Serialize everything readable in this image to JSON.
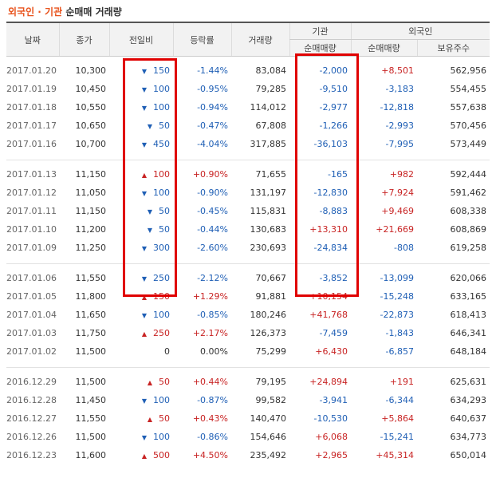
{
  "title": {
    "part1": "외국인 · 기관",
    "part2": "순매매 거래량"
  },
  "headers": {
    "date": "날짜",
    "close": "종가",
    "change": "전일비",
    "rate": "등락률",
    "volume": "거래량",
    "institution": "기관",
    "institution_net": "순매매량",
    "foreign": "외국인",
    "foreign_net": "순매매량",
    "foreign_hold": "보유주수"
  },
  "colors": {
    "title_accent": "#e8541e",
    "down": "#1f5fb5",
    "up": "#c82323",
    "highlight": "#e00000"
  },
  "groups": [
    {
      "rows": [
        {
          "date": "2017.01.20",
          "close": "10,300",
          "dir": "down",
          "change": "150",
          "rate": "-1.44%",
          "volume": "83,084",
          "inst": "-2,000",
          "frgn": "+8,501",
          "hold": "562,956"
        },
        {
          "date": "2017.01.19",
          "close": "10,450",
          "dir": "down",
          "change": "100",
          "rate": "-0.95%",
          "volume": "79,285",
          "inst": "-9,510",
          "frgn": "-3,183",
          "hold": "554,455"
        },
        {
          "date": "2017.01.18",
          "close": "10,550",
          "dir": "down",
          "change": "100",
          "rate": "-0.94%",
          "volume": "114,012",
          "inst": "-2,977",
          "frgn": "-12,818",
          "hold": "557,638"
        },
        {
          "date": "2017.01.17",
          "close": "10,650",
          "dir": "down",
          "change": "50",
          "rate": "-0.47%",
          "volume": "67,808",
          "inst": "-1,266",
          "frgn": "-2,993",
          "hold": "570,456"
        },
        {
          "date": "2017.01.16",
          "close": "10,700",
          "dir": "down",
          "change": "450",
          "rate": "-4.04%",
          "volume": "317,885",
          "inst": "-36,103",
          "frgn": "-7,995",
          "hold": "573,449"
        }
      ]
    },
    {
      "rows": [
        {
          "date": "2017.01.13",
          "close": "11,150",
          "dir": "up",
          "change": "100",
          "rate": "+0.90%",
          "volume": "71,655",
          "inst": "-165",
          "frgn": "+982",
          "hold": "592,444"
        },
        {
          "date": "2017.01.12",
          "close": "11,050",
          "dir": "down",
          "change": "100",
          "rate": "-0.90%",
          "volume": "131,197",
          "inst": "-12,830",
          "frgn": "+7,924",
          "hold": "591,462"
        },
        {
          "date": "2017.01.11",
          "close": "11,150",
          "dir": "down",
          "change": "50",
          "rate": "-0.45%",
          "volume": "115,831",
          "inst": "-8,883",
          "frgn": "+9,469",
          "hold": "608,338"
        },
        {
          "date": "2017.01.10",
          "close": "11,200",
          "dir": "down",
          "change": "50",
          "rate": "-0.44%",
          "volume": "130,683",
          "inst": "+13,310",
          "frgn": "+21,669",
          "hold": "608,869"
        },
        {
          "date": "2017.01.09",
          "close": "11,250",
          "dir": "down",
          "change": "300",
          "rate": "-2.60%",
          "volume": "230,693",
          "inst": "-24,834",
          "frgn": "-808",
          "hold": "619,258"
        }
      ]
    },
    {
      "rows": [
        {
          "date": "2017.01.06",
          "close": "11,550",
          "dir": "down",
          "change": "250",
          "rate": "-2.12%",
          "volume": "70,667",
          "inst": "-3,852",
          "frgn": "-13,099",
          "hold": "620,066"
        },
        {
          "date": "2017.01.05",
          "close": "11,800",
          "dir": "up",
          "change": "150",
          "rate": "+1.29%",
          "volume": "91,881",
          "inst": "+10,154",
          "frgn": "-15,248",
          "hold": "633,165"
        },
        {
          "date": "2017.01.04",
          "close": "11,650",
          "dir": "down",
          "change": "100",
          "rate": "-0.85%",
          "volume": "180,246",
          "inst": "+41,768",
          "frgn": "-22,873",
          "hold": "618,413"
        },
        {
          "date": "2017.01.03",
          "close": "11,750",
          "dir": "up",
          "change": "250",
          "rate": "+2.17%",
          "volume": "126,373",
          "inst": "-7,459",
          "frgn": "-1,843",
          "hold": "646,341"
        },
        {
          "date": "2017.01.02",
          "close": "11,500",
          "dir": "none",
          "change": "0",
          "rate": "0.00%",
          "volume": "75,299",
          "inst": "+6,430",
          "frgn": "-6,857",
          "hold": "648,184"
        }
      ]
    },
    {
      "rows": [
        {
          "date": "2016.12.29",
          "close": "11,500",
          "dir": "up",
          "change": "50",
          "rate": "+0.44%",
          "volume": "79,195",
          "inst": "+24,894",
          "frgn": "+191",
          "hold": "625,631"
        },
        {
          "date": "2016.12.28",
          "close": "11,450",
          "dir": "down",
          "change": "100",
          "rate": "-0.87%",
          "volume": "99,582",
          "inst": "-3,941",
          "frgn": "-6,344",
          "hold": "634,293"
        },
        {
          "date": "2016.12.27",
          "close": "11,550",
          "dir": "up",
          "change": "50",
          "rate": "+0.43%",
          "volume": "140,470",
          "inst": "-10,530",
          "frgn": "+5,864",
          "hold": "640,637"
        },
        {
          "date": "2016.12.26",
          "close": "11,500",
          "dir": "down",
          "change": "100",
          "rate": "-0.86%",
          "volume": "154,646",
          "inst": "+6,068",
          "frgn": "-15,241",
          "hold": "634,773"
        },
        {
          "date": "2016.12.23",
          "close": "11,600",
          "dir": "up",
          "change": "500",
          "rate": "+4.50%",
          "volume": "235,492",
          "inst": "+2,965",
          "frgn": "+45,314",
          "hold": "650,014"
        }
      ]
    }
  ]
}
